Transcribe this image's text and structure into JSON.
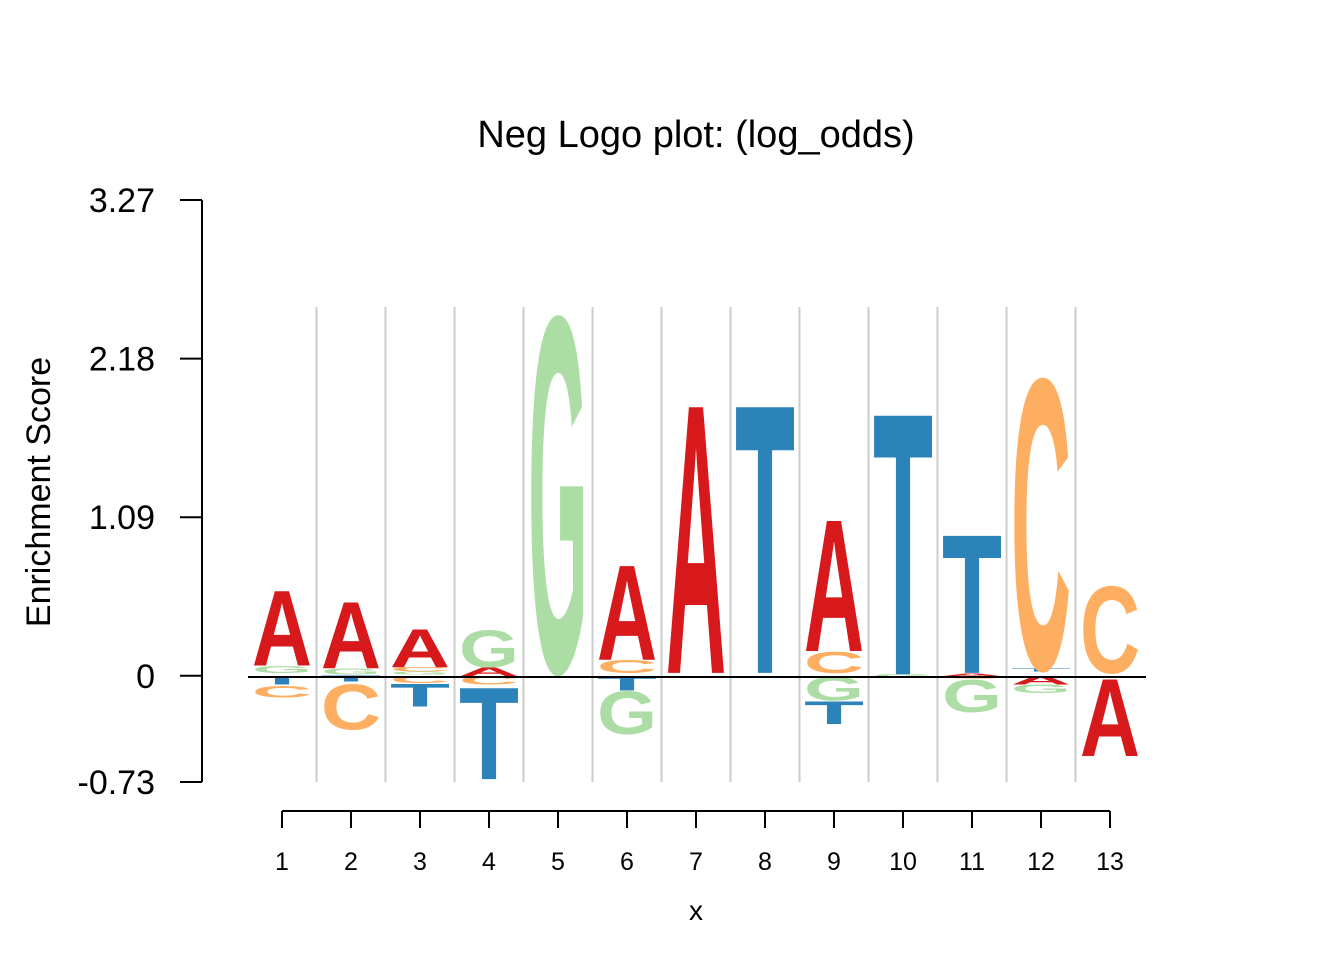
{
  "chart_data": {
    "type": "sequence-logo",
    "title": "Neg Logo plot: (log_odds)",
    "xlabel": "x",
    "ylabel": "Enrichment Score",
    "ylim": [
      -0.73,
      3.27
    ],
    "yticks": [
      "-0.73",
      "0",
      "1.09",
      "2.18",
      "3.27"
    ],
    "ytick_values": [
      -0.73,
      0,
      1.09,
      2.18,
      3.27
    ],
    "positions": [
      "1",
      "2",
      "3",
      "4",
      "5",
      "6",
      "7",
      "8",
      "9",
      "10",
      "11",
      "12",
      "13"
    ],
    "colors": {
      "A": "#d7191c",
      "C": "#fdae61",
      "G": "#abdda4",
      "T": "#2b83ba"
    },
    "grid": true,
    "columns": [
      {
        "pos": "1",
        "letters": [
          {
            "base": "G",
            "from": 0.02,
            "to": 0.07
          },
          {
            "base": "A",
            "from": 0.07,
            "to": 0.6
          },
          {
            "base": "T",
            "from": -0.06,
            "to": 0.0
          },
          {
            "base": "C",
            "from": -0.15,
            "to": -0.07
          }
        ]
      },
      {
        "pos": "2",
        "letters": [
          {
            "base": "G",
            "from": 0.01,
            "to": 0.05
          },
          {
            "base": "A",
            "from": 0.05,
            "to": 0.52
          },
          {
            "base": "T",
            "from": -0.04,
            "to": 0.0
          },
          {
            "base": "C",
            "from": -0.37,
            "to": -0.05
          }
        ]
      },
      {
        "pos": "3",
        "letters": [
          {
            "base": "G",
            "from": 0.01,
            "to": 0.03
          },
          {
            "base": "C",
            "from": 0.03,
            "to": 0.06
          },
          {
            "base": "A",
            "from": 0.06,
            "to": 0.33
          },
          {
            "base": "C",
            "from": -0.05,
            "to": 0.0
          },
          {
            "base": "T",
            "from": -0.21,
            "to": -0.05
          }
        ]
      },
      {
        "pos": "4",
        "letters": [
          {
            "base": "A",
            "from": 0.0,
            "to": 0.06
          },
          {
            "base": "G",
            "from": 0.06,
            "to": 0.32
          },
          {
            "base": "C",
            "from": -0.06,
            "to": 0.0
          },
          {
            "base": "T",
            "from": -0.71,
            "to": -0.06
          }
        ]
      },
      {
        "pos": "5",
        "letters": [
          {
            "base": "G",
            "from": 0.03,
            "to": 2.54
          }
        ]
      },
      {
        "pos": "6",
        "letters": [
          {
            "base": "C",
            "from": 0.02,
            "to": 0.11
          },
          {
            "base": "A",
            "from": 0.11,
            "to": 0.78
          },
          {
            "base": "T",
            "from": -0.1,
            "to": 0.0
          },
          {
            "base": "G",
            "from": -0.4,
            "to": -0.1
          }
        ]
      },
      {
        "pos": "7",
        "letters": [
          {
            "base": "A",
            "from": 0.02,
            "to": 1.92
          }
        ]
      },
      {
        "pos": "8",
        "letters": [
          {
            "base": "T",
            "from": 0.02,
            "to": 1.92
          }
        ]
      },
      {
        "pos": "9",
        "letters": [
          {
            "base": "C",
            "from": 0.02,
            "to": 0.17
          },
          {
            "base": "A",
            "from": 0.17,
            "to": 1.1
          },
          {
            "base": "G",
            "from": -0.17,
            "to": 0.0
          },
          {
            "base": "T",
            "from": -0.33,
            "to": -0.17
          }
        ]
      },
      {
        "pos": "10",
        "letters": [
          {
            "base": "G",
            "from": -0.01,
            "to": 0.01
          },
          {
            "base": "T",
            "from": 0.01,
            "to": 1.86
          }
        ]
      },
      {
        "pos": "11",
        "letters": [
          {
            "base": "A",
            "from": 0.0,
            "to": 0.02
          },
          {
            "base": "T",
            "from": 0.02,
            "to": 1.0
          },
          {
            "base": "C",
            "from": -0.02,
            "to": 0.0
          },
          {
            "base": "G",
            "from": -0.25,
            "to": -0.02
          }
        ]
      },
      {
        "pos": "12",
        "letters": [
          {
            "base": "T",
            "from": 0.03,
            "to": 0.05
          },
          {
            "base": "C",
            "from": 0.05,
            "to": 2.1
          },
          {
            "base": "A",
            "from": -0.06,
            "to": 0.0
          },
          {
            "base": "G",
            "from": -0.12,
            "to": -0.06
          }
        ]
      },
      {
        "pos": "13",
        "letters": [
          {
            "base": "C",
            "from": 0.02,
            "to": 0.63
          },
          {
            "base": "A",
            "from": -0.55,
            "to": 0.0
          }
        ]
      }
    ]
  }
}
